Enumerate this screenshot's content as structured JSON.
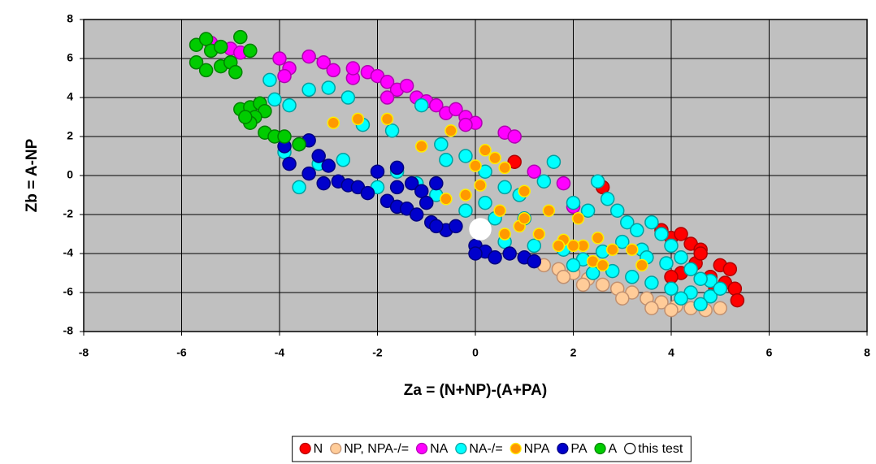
{
  "chart_data": {
    "type": "scatter",
    "x_label": "Za = (N+NP)-(A+PA)",
    "y_label": "Zb = A-NP",
    "xlim": [
      -8,
      8
    ],
    "xticks": [
      -8,
      -6,
      -4,
      -2,
      0,
      2,
      4,
      6,
      8
    ],
    "ylim": [
      -8,
      8
    ],
    "yticks": [
      -8,
      -6,
      -4,
      -2,
      0,
      2,
      4,
      6,
      8
    ],
    "grid": true,
    "legend": "bottom",
    "series": [
      {
        "name": "N",
        "color": "#ff0000",
        "edge": "#b00000",
        "marker_size": 8,
        "x": [
          0.8,
          2.6,
          3.8,
          4.0,
          4.2,
          4.4,
          4.6,
          4.5,
          4.2,
          4.8,
          5.0,
          5.2,
          5.1,
          5.3,
          5.35,
          4.9,
          4.6,
          4.0
        ],
        "values": [
          0.7,
          -0.6,
          -2.8,
          -3.2,
          -3.0,
          -3.5,
          -3.8,
          -4.5,
          -5.0,
          -5.2,
          -4.6,
          -4.8,
          -5.5,
          -5.8,
          -6.4,
          -5.8,
          -4.0,
          -5.2
        ]
      },
      {
        "name": "NP, NPA-/=",
        "color": "#ffcc99",
        "edge": "#c09070",
        "marker_size": 8,
        "x": [
          1.4,
          1.7,
          2.0,
          2.3,
          2.6,
          2.9,
          3.2,
          3.5,
          3.8,
          4.1,
          4.4,
          4.7,
          5.0,
          3.0,
          3.6,
          4.0,
          2.2,
          1.8
        ],
        "values": [
          -4.6,
          -4.8,
          -5.0,
          -5.3,
          -5.6,
          -5.8,
          -6.0,
          -6.3,
          -6.5,
          -6.7,
          -6.8,
          -6.9,
          -6.8,
          -6.3,
          -6.8,
          -6.9,
          -5.6,
          -5.2
        ]
      },
      {
        "name": "NA",
        "color": "#ff00ff",
        "edge": "#b000b0",
        "marker_size": 8,
        "x": [
          -5.4,
          -5.0,
          -4.8,
          -4.0,
          -3.8,
          -3.9,
          -3.4,
          -3.1,
          -2.9,
          -2.5,
          -2.2,
          -2.0,
          -1.8,
          -1.6,
          -1.4,
          -1.2,
          -1.0,
          -0.8,
          -0.6,
          -0.4,
          -0.2,
          0.0,
          0.6,
          0.8,
          -1.8,
          -2.5,
          1.2,
          1.8,
          2.0,
          -0.2
        ],
        "values": [
          6.8,
          6.5,
          6.3,
          6.0,
          5.5,
          5.1,
          6.1,
          5.8,
          5.4,
          5.0,
          5.3,
          5.1,
          4.8,
          4.4,
          4.6,
          4.0,
          3.8,
          3.6,
          3.2,
          3.4,
          3.0,
          2.7,
          2.2,
          2.0,
          4.0,
          5.5,
          0.2,
          -0.4,
          -1.6,
          2.6
        ]
      },
      {
        "name": "NA-/=",
        "color": "#00ffff",
        "edge": "#00a0a0",
        "marker_size": 8,
        "x": [
          -4.2,
          -4.1,
          -3.8,
          -3.4,
          -3.0,
          -2.6,
          -2.3,
          -1.7,
          -1.1,
          -0.7,
          -0.6,
          -0.2,
          0.2,
          0.6,
          0.9,
          1.4,
          1.6,
          2.0,
          2.3,
          2.5,
          2.7,
          2.9,
          3.1,
          3.3,
          3.6,
          3.8,
          4.0,
          4.2,
          3.0,
          3.4,
          2.6,
          2.2,
          1.8,
          1.2,
          0.6,
          0.4,
          -0.2,
          -0.8,
          -1.2,
          -1.6,
          -2.0,
          -3.2,
          -2.7,
          -3.6,
          -3.9,
          2.8,
          3.2,
          3.6,
          4.0,
          4.4,
          4.8,
          4.6,
          4.2,
          4.8,
          4.4,
          3.9,
          3.5,
          2.4,
          2.0,
          5.0,
          4.6,
          1.0,
          0.2
        ],
        "values": [
          4.9,
          3.9,
          3.6,
          4.4,
          4.5,
          4.0,
          2.6,
          2.3,
          3.6,
          1.6,
          0.8,
          1.0,
          0.2,
          -0.6,
          -1.0,
          -0.3,
          0.7,
          -1.4,
          -1.8,
          -0.3,
          -1.2,
          -1.8,
          -2.4,
          -2.8,
          -2.4,
          -3.0,
          -3.6,
          -4.2,
          -3.4,
          -3.8,
          -3.9,
          -4.3,
          -3.8,
          -3.6,
          -3.4,
          -2.2,
          -1.8,
          -1.0,
          -0.4,
          0.2,
          -0.6,
          0.6,
          0.8,
          -0.6,
          1.2,
          -4.9,
          -5.2,
          -5.5,
          -5.8,
          -6.0,
          -6.2,
          -6.6,
          -6.3,
          -5.4,
          -4.8,
          -4.5,
          -4.2,
          -5.0,
          -4.6,
          -5.8,
          -5.3,
          -2.2,
          -1.4
        ]
      },
      {
        "name": "NPA",
        "color": "#ff9900",
        "edge": "#ffee00",
        "marker_size": 7,
        "x": [
          -2.9,
          -2.4,
          -1.8,
          -1.1,
          -0.5,
          0.2,
          0.4,
          0.6,
          0.0,
          -0.2,
          0.1,
          -0.6,
          0.5,
          1.0,
          1.5,
          1.3,
          0.9,
          0.6,
          1.8,
          2.1,
          2.2,
          2.4,
          2.6,
          2.0,
          1.7,
          2.8,
          3.4,
          3.2,
          2.5,
          1.0
        ],
        "values": [
          2.7,
          2.9,
          2.9,
          1.5,
          2.3,
          1.3,
          0.9,
          0.4,
          0.5,
          -1.0,
          -0.5,
          -1.2,
          -1.8,
          -0.8,
          -1.8,
          -3.0,
          -2.6,
          -3.0,
          -3.3,
          -2.2,
          -3.6,
          -4.4,
          -4.6,
          -3.6,
          -3.6,
          -3.8,
          -4.6,
          -3.8,
          -3.2,
          -2.2
        ]
      },
      {
        "name": "PA",
        "color": "#0000cc",
        "edge": "#000080",
        "marker_size": 8,
        "x": [
          -3.9,
          -3.6,
          -3.4,
          -3.2,
          -3.0,
          -3.1,
          -2.8,
          -2.6,
          -2.4,
          -2.2,
          -2.0,
          -1.6,
          -1.3,
          -1.1,
          -1.6,
          -1.8,
          -1.6,
          -1.4,
          -1.2,
          -0.9,
          -0.6,
          -0.8,
          -1.0,
          -0.8,
          0.0,
          0.2,
          0.4,
          0.7,
          1.0,
          1.2,
          -3.8,
          -3.4,
          -0.4,
          0.0
        ],
        "values": [
          1.5,
          1.6,
          1.8,
          1.0,
          0.5,
          -0.4,
          -0.3,
          -0.5,
          -0.6,
          -0.9,
          0.2,
          0.4,
          -0.4,
          -0.8,
          -0.6,
          -1.3,
          -1.6,
          -1.7,
          -2.0,
          -2.4,
          -2.8,
          -2.6,
          -1.4,
          -0.4,
          -3.6,
          -3.9,
          -4.2,
          -4.0,
          -4.2,
          -4.4,
          0.6,
          0.1,
          -2.6,
          -4.0
        ]
      },
      {
        "name": "A",
        "color": "#00cc00",
        "edge": "#008000",
        "marker_size": 8,
        "x": [
          -5.7,
          -5.5,
          -5.4,
          -5.2,
          -4.8,
          -4.6,
          -5.7,
          -5.5,
          -5.2,
          -5.0,
          -4.9,
          -4.8,
          -4.6,
          -4.4,
          -4.3,
          -4.5,
          -4.6,
          -4.3,
          -4.1,
          -3.9,
          -3.6,
          -4.7
        ],
        "values": [
          6.7,
          7.0,
          6.4,
          6.6,
          7.1,
          6.4,
          5.8,
          5.4,
          5.6,
          5.8,
          5.3,
          3.4,
          3.5,
          3.7,
          3.3,
          3.0,
          2.7,
          2.2,
          2.0,
          2.0,
          1.6,
          3.0
        ]
      },
      {
        "name": "this test",
        "color": "#ffffff",
        "edge": "#ffffff",
        "marker_size": 13,
        "x": [
          0.1
        ],
        "values": [
          -2.75
        ]
      }
    ]
  }
}
